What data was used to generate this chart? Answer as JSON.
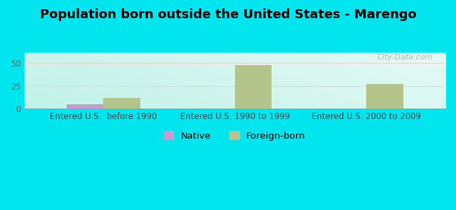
{
  "title": "Population born outside the United States - Marengo",
  "groups": [
    "Entered U.S.  before 1990",
    "Entered U.S. 1990 to 1999",
    "Entered U.S. 2000 to 2009"
  ],
  "native_values": [
    5,
    0,
    0
  ],
  "foreign_values": [
    12,
    48,
    27
  ],
  "native_color": "#cc99cc",
  "foreign_color": "#b5c48a",
  "bar_width": 0.28,
  "ylim": [
    0,
    62
  ],
  "yticks": [
    0,
    25,
    50
  ],
  "background_outer": "#00e5ee",
  "watermark": "City-Data.com",
  "legend_native": "Native",
  "legend_foreign": "Foreign-born",
  "title_fontsize": 13,
  "tick_fontsize": 8.5,
  "legend_fontsize": 9.5
}
